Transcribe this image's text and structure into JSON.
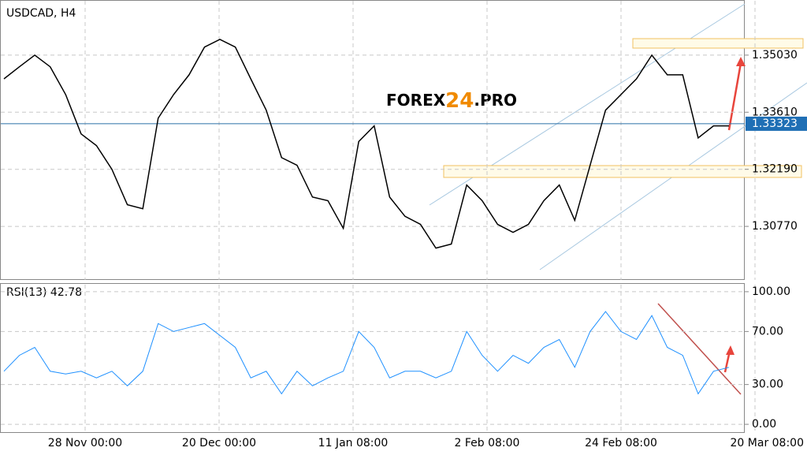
{
  "chart_data": [
    {
      "type": "line",
      "title": "USDCAD, H4",
      "color": "#000000",
      "values": [
        1.3444,
        1.3474,
        1.3503,
        1.3474,
        1.3405,
        1.3307,
        1.3278,
        1.3219,
        1.3131,
        1.3121,
        1.3346,
        1.3405,
        1.3454,
        1.3523,
        1.3542,
        1.3523,
        1.3444,
        1.3366,
        1.3248,
        1.3229,
        1.315,
        1.3141,
        1.3072,
        1.3288,
        1.3327,
        1.315,
        1.3102,
        1.3082,
        1.3023,
        1.3033,
        1.318,
        1.3141,
        1.3082,
        1.3062,
        1.3082,
        1.3141,
        1.318,
        1.3092,
        1.3229,
        1.3366,
        1.3405,
        1.3444,
        1.3503,
        1.3454,
        1.3454,
        1.3297,
        1.3327,
        1.3327
      ],
      "ylim": [
        1.29438,
        1.36401
      ],
      "yticks": [
        {
          "value": 1.3503,
          "label": "1.35030"
        },
        {
          "value": 1.3361,
          "label": "1.33610"
        },
        {
          "value": 1.3219,
          "label": "1.32190"
        },
        {
          "value": 1.3077,
          "label": "1.30770"
        }
      ],
      "current_price": {
        "value": 1.33323,
        "label": "1.33323"
      },
      "grid": true
    },
    {
      "type": "line",
      "title": "RSI(13) 42.78",
      "color": "#1e90ff",
      "values": [
        40,
        52,
        58,
        40,
        38,
        40,
        35,
        40,
        29,
        40,
        76,
        70,
        73,
        76,
        67,
        58,
        35,
        40,
        23,
        40,
        29,
        35,
        40,
        70,
        58,
        35,
        40,
        40,
        35,
        40,
        70,
        52,
        40,
        52,
        46,
        58,
        64,
        43,
        70,
        85,
        70,
        64,
        82,
        58,
        52,
        23,
        40,
        43
      ],
      "ylim": [
        -5.9,
        105.9
      ],
      "yticks": [
        {
          "value": 100,
          "label": "100.00"
        },
        {
          "value": 70,
          "label": "70.00"
        },
        {
          "value": 30,
          "label": "30.00"
        },
        {
          "value": 0,
          "label": "0.00"
        }
      ],
      "x_labels": [
        "28 Nov 00:00",
        "20 Dec 00:00",
        "11 Jan 08:00",
        "2 Feb 08:00",
        "24 Feb 08:00",
        "20 Mar 08:00"
      ],
      "grid": true
    }
  ],
  "watermark": [
    "FOREX",
    "24",
    ".PRO"
  ]
}
